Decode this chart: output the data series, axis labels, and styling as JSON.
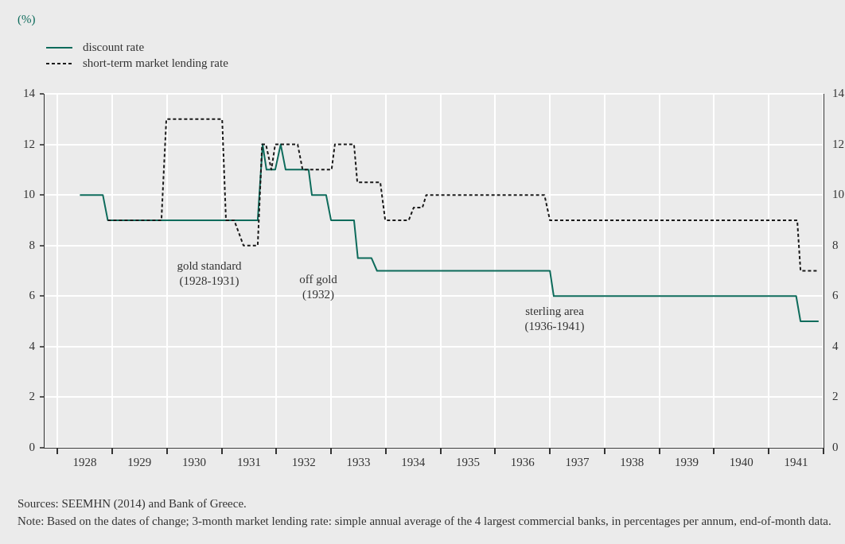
{
  "chart_data": {
    "type": "line",
    "xlim": [
      1927.75,
      1942
    ],
    "xticks": [
      {
        "value": 1928,
        "label": null
      },
      {
        "value": 1928.5,
        "label": "1928"
      },
      {
        "value": 1929,
        "label": null
      },
      {
        "value": 1929.5,
        "label": "1929"
      },
      {
        "value": 1930,
        "label": null
      },
      {
        "value": 1930.5,
        "label": "1930"
      },
      {
        "value": 1931,
        "label": null
      },
      {
        "value": 1931.5,
        "label": "1931"
      },
      {
        "value": 1932,
        "label": null
      },
      {
        "value": 1932.5,
        "label": "1932"
      },
      {
        "value": 1933,
        "label": null
      },
      {
        "value": 1933.5,
        "label": "1933"
      },
      {
        "value": 1934,
        "label": null
      },
      {
        "value": 1934.5,
        "label": "1934"
      },
      {
        "value": 1935,
        "label": null
      },
      {
        "value": 1935.5,
        "label": "1935"
      },
      {
        "value": 1936,
        "label": null
      },
      {
        "value": 1936.5,
        "label": "1936"
      },
      {
        "value": 1937,
        "label": null
      },
      {
        "value": 1937.5,
        "label": "1937"
      },
      {
        "value": 1938,
        "label": null
      },
      {
        "value": 1938.5,
        "label": "1938"
      },
      {
        "value": 1939,
        "label": null
      },
      {
        "value": 1939.5,
        "label": "1939"
      },
      {
        "value": 1940,
        "label": null
      },
      {
        "value": 1940.5,
        "label": "1940"
      },
      {
        "value": 1941,
        "label": null
      },
      {
        "value": 1941.5,
        "label": "1941"
      },
      {
        "value": 1942,
        "label": null
      }
    ],
    "ylim": [
      0,
      14
    ],
    "yticks": [
      0,
      2,
      4,
      6,
      8,
      10,
      12,
      14
    ],
    "y2lim": [
      0,
      14
    ],
    "y2ticks": [
      0,
      2,
      4,
      6,
      8,
      10,
      12,
      14
    ],
    "grid": true,
    "legend": "top left",
    "series": [
      {
        "name": "discount rate",
        "color": "#0d6b5b",
        "line_style": "solid",
        "x": [
          1928.41,
          1928.83,
          1928.92,
          1931.66,
          1931.75,
          1931.82,
          1931.98,
          1932.08,
          1932.17,
          1932.59,
          1932.65,
          1932.91,
          1933.0,
          1933.42,
          1933.49,
          1933.74,
          1933.84,
          1937.0,
          1937.07,
          1941.5,
          1941.58,
          1941.91
        ],
        "values": [
          10,
          10,
          9,
          9,
          12,
          11,
          11,
          12,
          11,
          11,
          10,
          10,
          9,
          9,
          7.5,
          7.5,
          7,
          7,
          6,
          6,
          5,
          5
        ]
      },
      {
        "name": "short-term market lending rate",
        "color": "#1a1a1a",
        "line_style": "dashed",
        "x": [
          1928.92,
          1929.9,
          1929.99,
          1931.01,
          1931.08,
          1931.23,
          1931.4,
          1931.66,
          1931.74,
          1931.81,
          1931.91,
          1931.98,
          1932.39,
          1932.48,
          1933.01,
          1933.07,
          1933.42,
          1933.48,
          1933.9,
          1933.99,
          1934.42,
          1934.51,
          1934.67,
          1934.74,
          1936.9,
          1937.0,
          1941.52,
          1941.58,
          1941.91
        ],
        "values": [
          9,
          9,
          13,
          13,
          9,
          9,
          8,
          8,
          12,
          12,
          11,
          12,
          12,
          11,
          11,
          12,
          12,
          10.5,
          10.5,
          9,
          9,
          9.5,
          9.5,
          10,
          10,
          9,
          9,
          7,
          7
        ]
      }
    ],
    "annotations": [
      "(%)",
      "gold standard\n(1928-1931)",
      "off gold\n(1932)",
      "sterling area\n(1936-1941)",
      "Sources: SEEMHN (2014) and Bank of Greece.",
      "Note: Based on the dates of change; 3-month market lending rate: simple annual average of the 4 largest commercial banks, in percentages per annum, end-of-month data."
    ]
  }
}
